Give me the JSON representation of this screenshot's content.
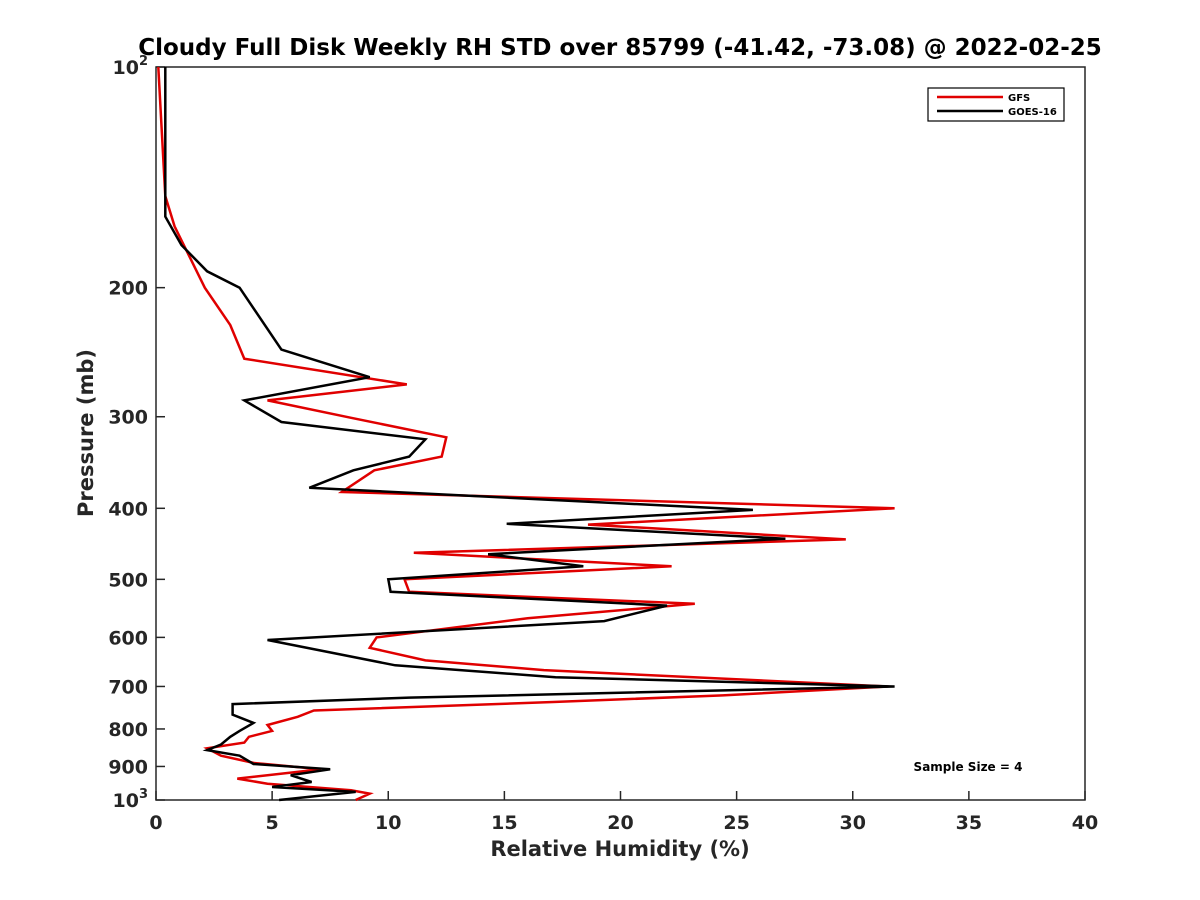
{
  "chart_data": {
    "type": "line",
    "title": "Cloudy Full Disk Weekly RH STD over 85799 (-41.42, -73.08) @ 2022-02-25",
    "xlabel": "Relative Humidity (%)",
    "ylabel": "Pressure (mb)",
    "xlim": [
      0,
      40
    ],
    "ylim": [
      100,
      1000
    ],
    "y_scale": "log",
    "y_reversed": true,
    "grid": false,
    "legend_position": "top-right",
    "x_ticks": [
      0,
      5,
      10,
      15,
      20,
      25,
      30,
      35,
      40
    ],
    "y_ticks": [
      {
        "value": 100,
        "base": "10",
        "exp": "2"
      },
      {
        "value": 200,
        "label": "200"
      },
      {
        "value": 300,
        "label": "300"
      },
      {
        "value": 400,
        "label": "400"
      },
      {
        "value": 500,
        "label": "500"
      },
      {
        "value": 600,
        "label": "600"
      },
      {
        "value": 700,
        "label": "700"
      },
      {
        "value": 800,
        "label": "800"
      },
      {
        "value": 900,
        "label": "900"
      },
      {
        "value": 1000,
        "base": "10",
        "exp": "3"
      }
    ],
    "annotation": "Sample Size = 4",
    "series": [
      {
        "name": "GFS",
        "color": "#e00000",
        "points": [
          [
            0.1,
            100
          ],
          [
            0.4,
            150
          ],
          [
            0.8,
            165
          ],
          [
            2.1,
            200
          ],
          [
            3.2,
            225
          ],
          [
            3.8,
            250
          ],
          [
            10.8,
            271
          ],
          [
            4.8,
            285
          ],
          [
            8.4,
            301
          ],
          [
            12.5,
            320
          ],
          [
            12.3,
            340
          ],
          [
            9.4,
            355
          ],
          [
            8.0,
            380
          ],
          [
            31.8,
            400
          ],
          [
            18.6,
            421
          ],
          [
            29.7,
            441
          ],
          [
            11.1,
            460
          ],
          [
            22.2,
            480
          ],
          [
            10.7,
            500
          ],
          [
            10.9,
            520
          ],
          [
            23.2,
            540
          ],
          [
            16.0,
            565
          ],
          [
            9.5,
            600
          ],
          [
            9.2,
            620
          ],
          [
            11.6,
            645
          ],
          [
            16.7,
            665
          ],
          [
            31.5,
            700
          ],
          [
            24.4,
            720
          ],
          [
            17.1,
            735
          ],
          [
            6.8,
            755
          ],
          [
            6.1,
            770
          ],
          [
            4.8,
            790
          ],
          [
            5.0,
            805
          ],
          [
            4.0,
            820
          ],
          [
            3.8,
            835
          ],
          [
            2.2,
            850
          ],
          [
            2.8,
            870
          ],
          [
            4.2,
            890
          ],
          [
            7.1,
            908
          ],
          [
            3.5,
            935
          ],
          [
            4.8,
            950
          ],
          [
            8.4,
            970
          ],
          [
            9.2,
            980
          ],
          [
            8.6,
            1000
          ]
        ]
      },
      {
        "name": "GOES-16",
        "color": "#000000",
        "points": [
          [
            0.4,
            100
          ],
          [
            0.4,
            160
          ],
          [
            1.1,
            175
          ],
          [
            2.2,
            190
          ],
          [
            3.6,
            200
          ],
          [
            5.4,
            243
          ],
          [
            9.2,
            265
          ],
          [
            3.8,
            285
          ],
          [
            5.4,
            305
          ],
          [
            11.6,
            322
          ],
          [
            10.9,
            340
          ],
          [
            8.5,
            355
          ],
          [
            6.6,
            375
          ],
          [
            25.7,
            402
          ],
          [
            15.1,
            420
          ],
          [
            27.1,
            440
          ],
          [
            14.3,
            462
          ],
          [
            18.4,
            480
          ],
          [
            10.0,
            500
          ],
          [
            10.1,
            520
          ],
          [
            22.0,
            543
          ],
          [
            19.3,
            570
          ],
          [
            4.8,
            605
          ],
          [
            7.6,
            630
          ],
          [
            10.3,
            655
          ],
          [
            17.2,
            680
          ],
          [
            31.8,
            700
          ],
          [
            10.9,
            725
          ],
          [
            3.3,
            740
          ],
          [
            3.3,
            765
          ],
          [
            4.2,
            785
          ],
          [
            3.6,
            805
          ],
          [
            3.2,
            820
          ],
          [
            2.8,
            840
          ],
          [
            2.2,
            855
          ],
          [
            3.6,
            870
          ],
          [
            4.2,
            893
          ],
          [
            7.5,
            908
          ],
          [
            5.8,
            925
          ],
          [
            6.7,
            945
          ],
          [
            5.0,
            960
          ],
          [
            8.6,
            975
          ],
          [
            5.3,
            1000
          ]
        ]
      }
    ]
  }
}
